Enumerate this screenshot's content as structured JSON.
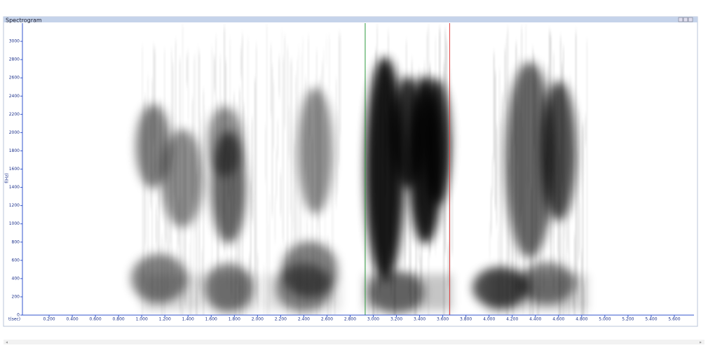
{
  "window": {
    "title": "Spectrogram"
  },
  "plot": {
    "y_label": "f(Hz)",
    "x_label": "t(sec)",
    "ylim": [
      0,
      3200
    ],
    "xlim": [
      0,
      5.8
    ],
    "yticks": [
      0,
      200,
      400,
      600,
      800,
      1000,
      1200,
      1400,
      1600,
      1800,
      2000,
      2200,
      2400,
      2600,
      2800,
      3000
    ],
    "xticks": [
      {
        "value": 0.2,
        "label": "0.200"
      },
      {
        "value": 0.4,
        "label": "0.400"
      },
      {
        "value": 0.6,
        "label": "0.600"
      },
      {
        "value": 0.8,
        "label": "0.800"
      },
      {
        "value": 1.0,
        "label": "1.000"
      },
      {
        "value": 1.2,
        "label": "1.200"
      },
      {
        "value": 1.4,
        "label": "1.400"
      },
      {
        "value": 1.6,
        "label": "1.600"
      },
      {
        "value": 1.8,
        "label": "1.800"
      },
      {
        "value": 2.0,
        "label": "2.000"
      },
      {
        "value": 2.2,
        "label": "2.200"
      },
      {
        "value": 2.4,
        "label": "2.400"
      },
      {
        "value": 2.6,
        "label": "2.600"
      },
      {
        "value": 2.8,
        "label": "2.800"
      },
      {
        "value": 3.0,
        "label": "3.000"
      },
      {
        "value": 3.2,
        "label": "3.200"
      },
      {
        "value": 3.4,
        "label": "3.400"
      },
      {
        "value": 3.6,
        "label": "3.600"
      },
      {
        "value": 3.8,
        "label": "3.800"
      },
      {
        "value": 4.0,
        "label": "4.000"
      },
      {
        "value": 4.2,
        "label": "4.200"
      },
      {
        "value": 4.4,
        "label": "4.400"
      },
      {
        "value": 4.6,
        "label": "4.600"
      },
      {
        "value": 4.8,
        "label": "4.800"
      },
      {
        "value": 5.0,
        "label": "5.000"
      },
      {
        "value": 5.2,
        "label": "5.200"
      },
      {
        "value": 5.4,
        "label": "5.400"
      },
      {
        "value": 5.6,
        "label": "5.600"
      }
    ],
    "cursors": [
      {
        "value": 2.93,
        "color": "#2e9a3e"
      },
      {
        "value": 3.66,
        "color": "#e04040"
      }
    ]
  }
}
